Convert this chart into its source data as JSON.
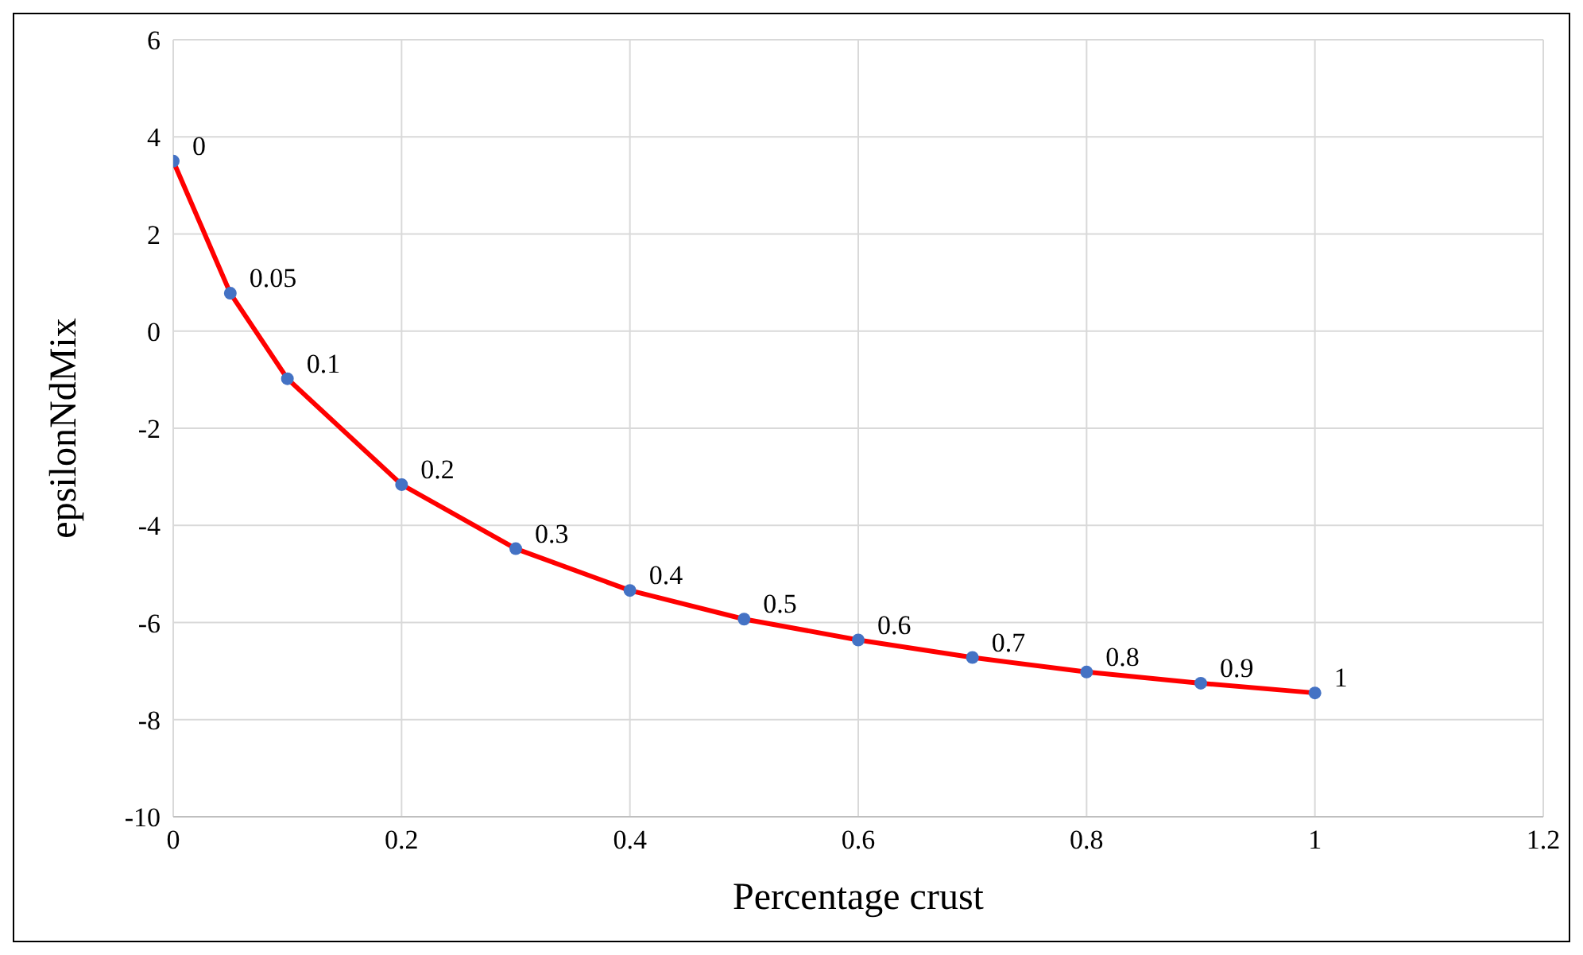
{
  "chart_data": {
    "type": "line",
    "xlabel": "Percentage crust",
    "ylabel": "epsilonNdMix",
    "x": [
      0,
      0.05,
      0.1,
      0.2,
      0.3,
      0.4,
      0.5,
      0.6,
      0.7,
      0.8,
      0.9,
      1
    ],
    "series": [
      {
        "color": "#ff0000",
        "colors": [
          "#4472c4",
          "#4472c4",
          "#4472c4",
          "#4472c4",
          "#4472c4",
          "#4472c4",
          "#4472c4",
          "#4472c4",
          "#4472c4",
          "#4472c4",
          "#4472c4",
          "#4472c4"
        ],
        "values": [
          3.5,
          0.78,
          -0.98,
          -3.16,
          -4.48,
          -5.34,
          -5.93,
          -6.36,
          -6.72,
          -7.02,
          -7.25,
          -7.45
        ]
      }
    ],
    "annotations": [
      {
        "text": "0",
        "x": 0,
        "y": 3.5
      },
      {
        "text": "0.05",
        "x": 0.05,
        "y": 0.78
      },
      {
        "text": "0.1",
        "x": 0.1,
        "y": -0.98
      },
      {
        "text": "0.2",
        "x": 0.2,
        "y": -3.16
      },
      {
        "text": "0.3",
        "x": 0.3,
        "y": -4.48
      },
      {
        "text": "0.4",
        "x": 0.4,
        "y": -5.34
      },
      {
        "text": "0.5",
        "x": 0.5,
        "y": -5.93
      },
      {
        "text": "0.6",
        "x": 0.6,
        "y": -6.36
      },
      {
        "text": "0.7",
        "x": 0.7,
        "y": -6.72
      },
      {
        "text": "0.8",
        "x": 0.8,
        "y": -7.02
      },
      {
        "text": "0.9",
        "x": 0.9,
        "y": -7.25
      },
      {
        "text": "1",
        "x": 1,
        "y": -7.45
      }
    ],
    "xlim": [
      0,
      1.2
    ],
    "xticks": [
      0,
      0.2,
      0.4,
      0.6,
      0.8,
      1,
      1.2
    ],
    "ylim": [
      -10,
      6
    ],
    "yticks": [
      -10,
      -8,
      -6,
      -4,
      -2,
      0,
      2,
      4,
      6
    ],
    "grid": true,
    "marker": "circle",
    "line_style": "solid"
  }
}
